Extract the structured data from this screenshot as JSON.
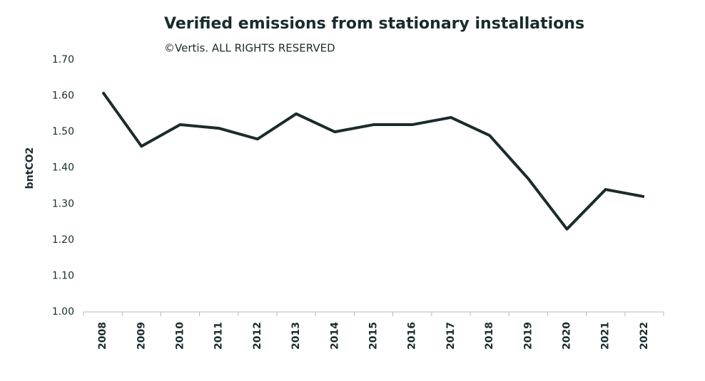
{
  "chart_data": {
    "type": "line",
    "title": "Verified emissions from stationary installations",
    "subtitle": "©Vertis. ALL RIGHTS RESERVED",
    "y_label": "bntCO2",
    "categories": [
      "2008",
      "2009",
      "2010",
      "2011",
      "2012",
      "2013",
      "2014",
      "2015",
      "2016",
      "2017",
      "2018",
      "2019",
      "2020",
      "2021",
      "2022"
    ],
    "values": [
      1.61,
      1.46,
      1.52,
      1.51,
      1.48,
      1.55,
      1.5,
      1.52,
      1.52,
      1.54,
      1.49,
      1.37,
      1.23,
      1.34,
      1.32
    ],
    "color": "#1b2b2b",
    "ylim": [
      1.0,
      1.7
    ],
    "yticks": [
      {
        "value": 1.0,
        "label": "1.00"
      },
      {
        "value": 1.1,
        "label": "1.10"
      },
      {
        "value": 1.2,
        "label": "1.20"
      },
      {
        "value": 1.3,
        "label": "1.30"
      },
      {
        "value": 1.4,
        "label": "1.40"
      },
      {
        "value": 1.5,
        "label": "1.50"
      },
      {
        "value": 1.6,
        "label": "1.60"
      },
      {
        "value": 1.7,
        "label": "1.70"
      }
    ],
    "grid": false
  }
}
